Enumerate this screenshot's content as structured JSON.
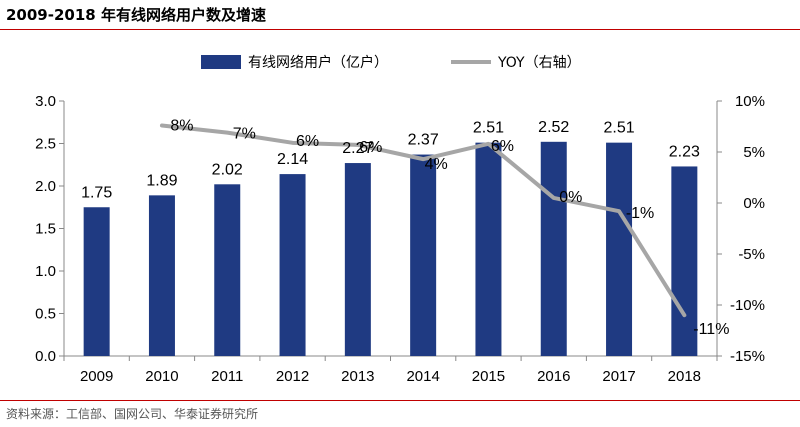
{
  "title": "2009-2018 年有线网络用户数及增速",
  "source": "资料来源：工信部、国网公司、华泰证券研究所",
  "colors": {
    "bar": "#1f3a82",
    "line": "#a6a6a6",
    "accent_rule": "#c00000"
  },
  "chart_data": {
    "type": "bar",
    "title": "2009-2018 年有线网络用户数及增速",
    "categories": [
      "2009",
      "2010",
      "2011",
      "2012",
      "2013",
      "2014",
      "2015",
      "2016",
      "2017",
      "2018"
    ],
    "series": [
      {
        "name": "有线网络用户（亿户）",
        "type": "bar",
        "axis": "left",
        "values": [
          1.75,
          1.89,
          2.02,
          2.14,
          2.27,
          2.37,
          2.51,
          2.52,
          2.51,
          2.23
        ],
        "labels": [
          "1.75",
          "1.89",
          "2.02",
          "2.14",
          "2.27",
          "2.37",
          "2.51",
          "2.52",
          "2.51",
          "2.23"
        ]
      },
      {
        "name": "YOY（右轴）",
        "type": "line",
        "axis": "right",
        "values": [
          null,
          7.6,
          6.9,
          5.9,
          5.7,
          4.3,
          5.8,
          0.5,
          -0.8,
          -11.0
        ],
        "labels": [
          "",
          "8%",
          "7%",
          "6%",
          "6%",
          "4%",
          "6%",
          "0%",
          "-1%",
          "-11%"
        ]
      }
    ],
    "y_left": {
      "min": 0,
      "max": 3.0,
      "ticks": [
        0,
        0.5,
        1.0,
        1.5,
        2.0,
        2.5,
        3.0
      ],
      "tick_labels": [
        "0.0",
        "0.5",
        "1.0",
        "1.5",
        "2.0",
        "2.5",
        "3.0"
      ]
    },
    "y_right": {
      "min": -15,
      "max": 10,
      "ticks": [
        -15,
        -10,
        -5,
        0,
        5,
        10
      ],
      "tick_labels": [
        "-15%",
        "-10%",
        "-5%",
        "0%",
        "5%",
        "10%"
      ]
    },
    "legend": {
      "position": "top",
      "items": [
        "有线网络用户（亿户）",
        "YOY（右轴）"
      ]
    },
    "grid": false
  }
}
